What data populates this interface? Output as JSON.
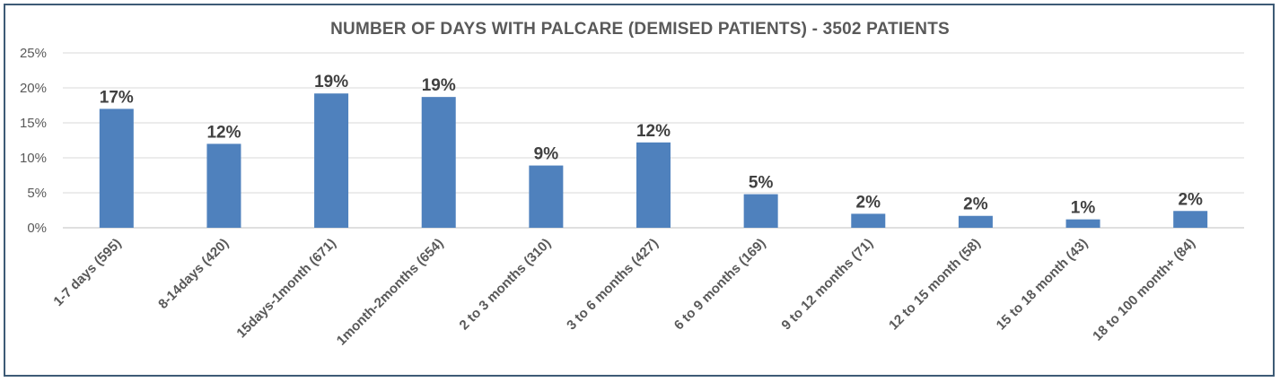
{
  "chart_data": {
    "type": "bar",
    "title": "NUMBER OF DAYS WITH PALCARE (DEMISED PATIENTS) - 3502 PATIENTS",
    "xlabel": "",
    "ylabel": "",
    "ylim": [
      0,
      25
    ],
    "yticks": [
      0,
      5,
      10,
      15,
      20,
      25
    ],
    "ytick_labels": [
      "0%",
      "5%",
      "10%",
      "15%",
      "20%",
      "25%"
    ],
    "grid": true,
    "legend": "none",
    "bar_color": "#4f81bd",
    "categories": [
      "1-7 days (595)",
      "8-14days (420)",
      "15days-1month (671)",
      "1month-2months (654)",
      "2 to 3 months (310)",
      "3 to 6 months (427)",
      "6 to 9 months (169)",
      "9 to 12 months (71)",
      "12 to 15 month (58)",
      "15 to 18 month (43)",
      "18 to 100 month+ (84)"
    ],
    "values": [
      17.0,
      12.0,
      19.2,
      18.7,
      8.9,
      12.2,
      4.8,
      2.0,
      1.7,
      1.2,
      2.4
    ],
    "data_labels": [
      "17%",
      "12%",
      "19%",
      "19%",
      "9%",
      "12%",
      "5%",
      "2%",
      "2%",
      "1%",
      "2%"
    ]
  }
}
